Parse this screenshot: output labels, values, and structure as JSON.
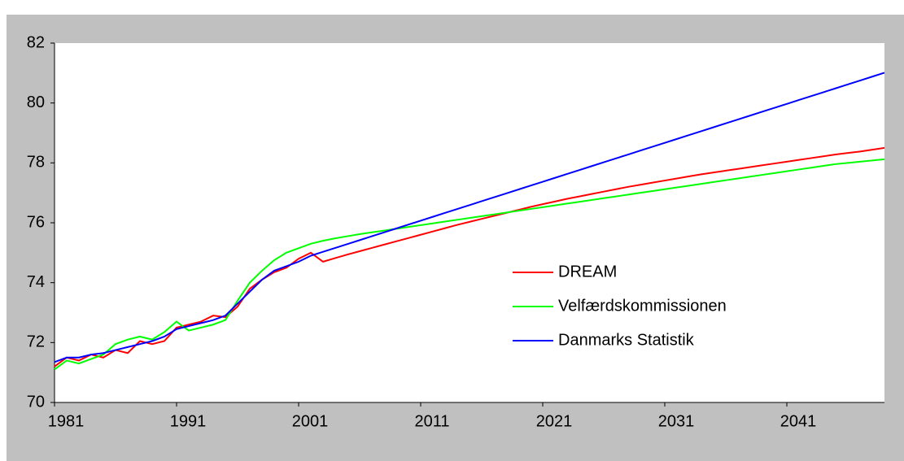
{
  "chart_data": {
    "type": "line",
    "x": [
      1981,
      1982,
      1983,
      1984,
      1985,
      1986,
      1987,
      1988,
      1989,
      1990,
      1991,
      1992,
      1993,
      1994,
      1995,
      1996,
      1997,
      1998,
      1999,
      2000,
      2001,
      2002,
      2003,
      2004,
      2005,
      2006,
      2007,
      2008,
      2009,
      2010,
      2011,
      2012,
      2013,
      2014,
      2015,
      2016,
      2017,
      2018,
      2019,
      2020,
      2021,
      2022,
      2023,
      2024,
      2025,
      2026,
      2027,
      2028,
      2029,
      2030,
      2031,
      2032,
      2033,
      2034,
      2035,
      2036,
      2037,
      2038,
      2039,
      2040,
      2041,
      2042,
      2043,
      2044,
      2045,
      2046,
      2047,
      2048,
      2049
    ],
    "series": [
      {
        "name": "DREAM",
        "color": "#ff0000",
        "values": [
          71.2,
          71.5,
          71.4,
          71.6,
          71.5,
          71.75,
          71.65,
          72.05,
          71.95,
          72.05,
          72.5,
          72.6,
          72.7,
          72.9,
          72.85,
          73.2,
          73.8,
          74.1,
          74.35,
          74.5,
          74.8,
          75.0,
          74.7,
          74.82,
          74.94,
          75.05,
          75.16,
          75.27,
          75.38,
          75.49,
          75.6,
          75.71,
          75.82,
          75.93,
          76.03,
          76.13,
          76.23,
          76.33,
          76.43,
          76.53,
          76.62,
          76.71,
          76.8,
          76.88,
          76.96,
          77.04,
          77.12,
          77.2,
          77.27,
          77.34,
          77.41,
          77.48,
          77.55,
          77.62,
          77.68,
          77.74,
          77.8,
          77.86,
          77.92,
          77.98,
          78.04,
          78.1,
          78.16,
          78.22,
          78.28,
          78.33,
          78.38,
          78.44,
          78.5
        ]
      },
      {
        "name": "Velfærdskommissionen",
        "color": "#00ff00",
        "values": [
          71.1,
          71.4,
          71.3,
          71.45,
          71.6,
          71.95,
          72.1,
          72.2,
          72.1,
          72.35,
          72.7,
          72.4,
          72.5,
          72.6,
          72.75,
          73.4,
          74.0,
          74.4,
          74.75,
          75.0,
          75.15,
          75.3,
          75.4,
          75.48,
          75.55,
          75.62,
          75.68,
          75.74,
          75.8,
          75.86,
          75.92,
          75.98,
          76.04,
          76.1,
          76.16,
          76.22,
          76.28,
          76.34,
          76.4,
          76.46,
          76.52,
          76.58,
          76.64,
          76.7,
          76.76,
          76.82,
          76.88,
          76.94,
          77.0,
          77.06,
          77.12,
          77.18,
          77.24,
          77.3,
          77.36,
          77.42,
          77.48,
          77.54,
          77.6,
          77.66,
          77.72,
          77.78,
          77.84,
          77.9,
          77.96,
          78.0,
          78.04,
          78.08,
          78.12
        ]
      },
      {
        "name": "Danmarks Statistik",
        "color": "#0000ff",
        "values": [
          71.35,
          71.5,
          71.5,
          71.6,
          71.65,
          71.75,
          71.85,
          71.95,
          72.05,
          72.2,
          72.45,
          72.55,
          72.65,
          72.75,
          72.9,
          73.3,
          73.7,
          74.1,
          74.4,
          74.55,
          74.7,
          74.9,
          75.03,
          75.16,
          75.29,
          75.42,
          75.55,
          75.68,
          75.81,
          75.94,
          76.07,
          76.2,
          76.33,
          76.46,
          76.59,
          76.72,
          76.85,
          76.98,
          77.11,
          77.24,
          77.37,
          77.5,
          77.63,
          77.76,
          77.89,
          78.02,
          78.15,
          78.28,
          78.41,
          78.54,
          78.67,
          78.8,
          78.93,
          79.06,
          79.19,
          79.32,
          79.45,
          79.58,
          79.71,
          79.84,
          79.97,
          80.1,
          80.23,
          80.36,
          80.49,
          80.62,
          80.75,
          80.88,
          81.01
        ]
      }
    ],
    "xlim": [
      1981,
      2049
    ],
    "xticks": [
      1981,
      1991,
      2001,
      2011,
      2021,
      2031,
      2041
    ],
    "ylim": [
      70,
      82
    ],
    "yticks": [
      70,
      72,
      74,
      76,
      78,
      80,
      82
    ],
    "legend": "right"
  }
}
